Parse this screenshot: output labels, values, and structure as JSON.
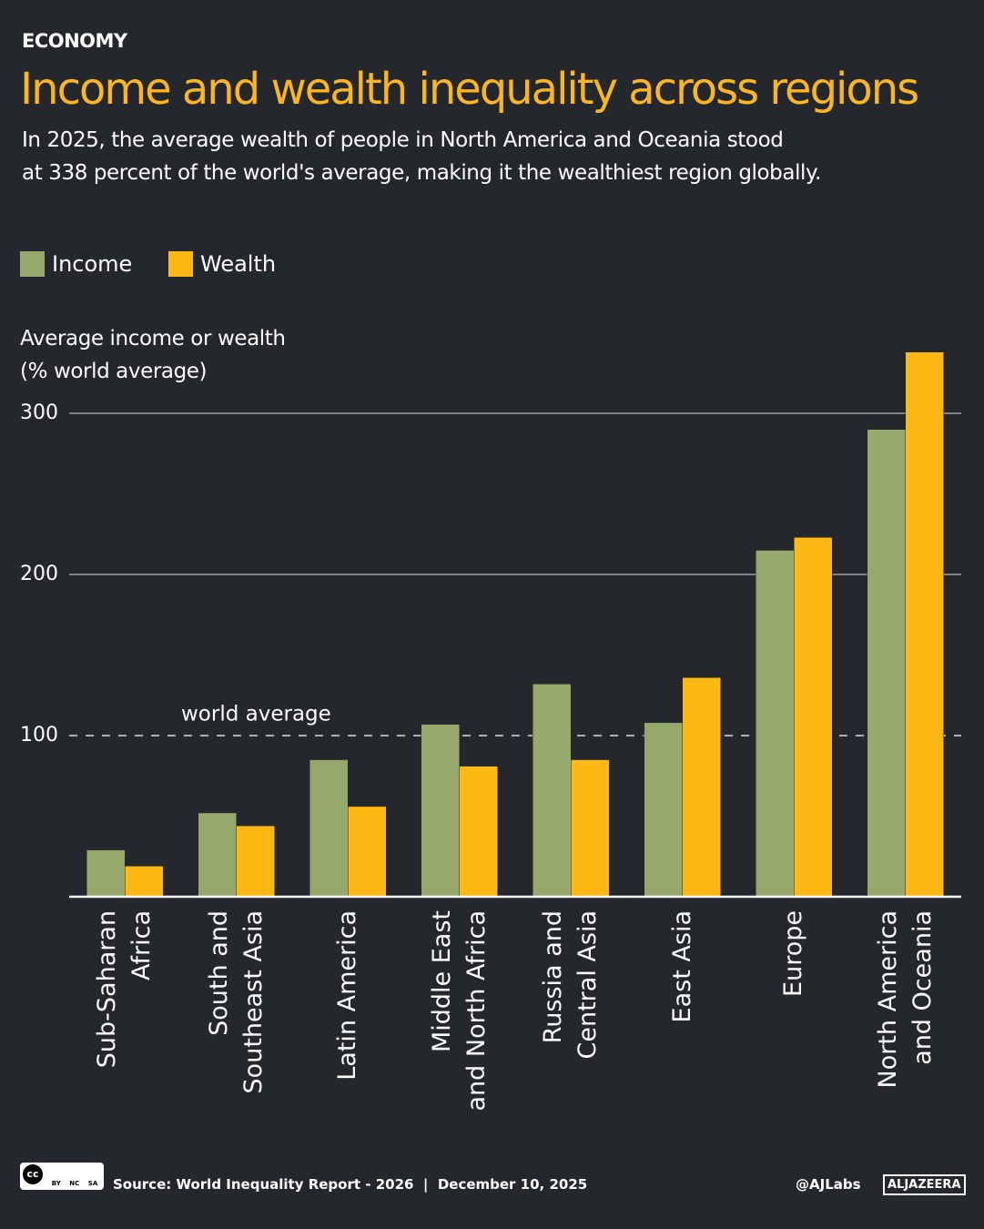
{
  "section": "ECONOMY",
  "chart_data": {
    "type": "bar",
    "title": "Income and wealth inequality across regions",
    "subtitle": "In 2025, the average wealth of people in North America and Oceania stood\nat 338 percent of the world's average, making it the wealthiest region globally.",
    "y_label": "Average income or wealth\n(% world average)",
    "categories": [
      "Sub-Saharan\nAfrica",
      "South and\nSoutheast Asia",
      "Latin America",
      "Middle East\nand North Africa",
      "Russia and\nCentral Asia",
      "East Asia",
      "Europe",
      "North America\nand Oceania"
    ],
    "series": [
      {
        "name": "Income",
        "color": "#97a86c",
        "values": [
          29,
          52,
          85,
          107,
          132,
          108,
          215,
          290
        ]
      },
      {
        "name": "Wealth",
        "color": "#fdb813",
        "values": [
          19,
          44,
          56,
          81,
          85,
          136,
          223,
          338
        ]
      }
    ],
    "ylim": [
      0,
      350
    ],
    "yticks": [
      100,
      200,
      300
    ],
    "grid": true,
    "reference_line": {
      "value": 100,
      "label": "world average"
    },
    "legend": "top-left"
  },
  "footer": {
    "source": "Source: World Inequality Report - 2026  |  December 10, 2025",
    "handle": "@AJLabs",
    "brand": "ALJAZEERA",
    "license": [
      "BY",
      "NC",
      "SA"
    ]
  }
}
